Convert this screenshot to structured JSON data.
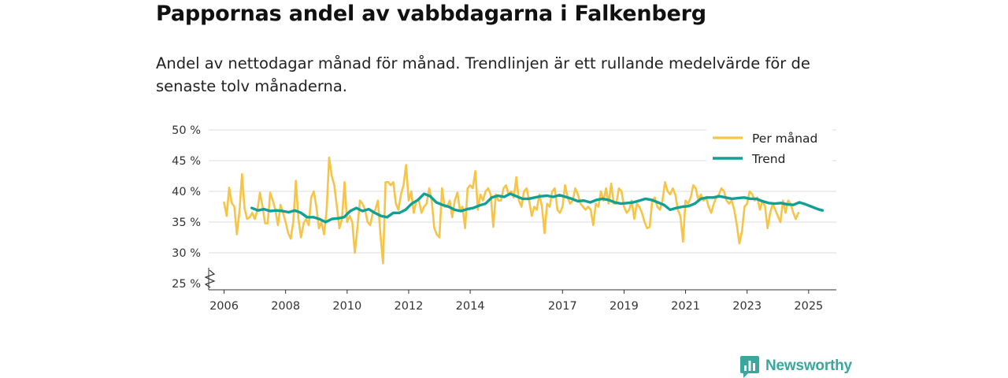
{
  "title": "Pappornas andel av vabbdagarna i Falkenberg",
  "subtitle": "Andel av nettodagar månad för månad. Trendlinjen är ett rullande medelvärde för de senaste tolv månaderna.",
  "brand": "Newsworthy",
  "colors": {
    "monthly": "#f6c447",
    "trend": "#12a095",
    "brand": "#3aa79c",
    "grid": "#dddddd",
    "axis": "#333333"
  },
  "chart_data": {
    "type": "line",
    "title": "Pappornas andel av vabbdagarna i Falkenberg",
    "xlabel": "",
    "ylabel": "",
    "xlim": [
      2005.5,
      2025.9
    ],
    "ylim": [
      25,
      50
    ],
    "y_ticks": [
      25,
      30,
      35,
      40,
      45,
      50
    ],
    "y_tick_labels": [
      "25 %",
      "30 %",
      "35 %",
      "40 %",
      "45 %",
      "50 %"
    ],
    "x_ticks": [
      2006,
      2008,
      2010,
      2012,
      2014,
      2017,
      2019,
      2021,
      2023,
      2025
    ],
    "x_tick_labels": [
      "2006",
      "2008",
      "2010",
      "2012",
      "2014",
      "2017",
      "2019",
      "2021",
      "2023",
      "2025"
    ],
    "y_axis_break": true,
    "legend": {
      "placement": "top-right",
      "entries": [
        "Per månad",
        "Trend"
      ]
    },
    "series": [
      {
        "name": "Per månad",
        "x_start": 2006.0,
        "x_step": 0.08333,
        "values": [
          38.2,
          36.0,
          40.6,
          38.1,
          37.5,
          33.0,
          36.8,
          42.8,
          37.2,
          35.5,
          35.8,
          36.5,
          35.5,
          37.0,
          39.8,
          37.5,
          34.8,
          34.8,
          39.8,
          38.5,
          37.0,
          34.5,
          37.8,
          36.5,
          35.0,
          33.2,
          32.3,
          35.0,
          41.7,
          35.5,
          32.5,
          34.8,
          35.5,
          34.5,
          39.0,
          40.0,
          37.5,
          34.0,
          35.0,
          33.0,
          37.0,
          45.5,
          42.5,
          41.0,
          37.5,
          34.0,
          35.5,
          41.5,
          35.0,
          36.0,
          35.0,
          30.0,
          34.0,
          38.5,
          38.0,
          37.0,
          35.0,
          34.5,
          36.5,
          37.0,
          38.5,
          33.0,
          28.3,
          41.5,
          41.5,
          41.0,
          41.5,
          38.0,
          37.0,
          39.5,
          41.0,
          44.3,
          38.5,
          40.0,
          36.5,
          38.5,
          38.5,
          36.5,
          37.5,
          38.0,
          40.5,
          38.5,
          34.0,
          33.0,
          32.5,
          40.5,
          37.5,
          37.5,
          38.5,
          35.8,
          38.5,
          39.8,
          37.0,
          37.5,
          34.0,
          40.5,
          41.0,
          40.5,
          43.3,
          37.0,
          39.5,
          38.5,
          40.0,
          40.5,
          39.5,
          34.2,
          39.5,
          38.5,
          38.5,
          40.5,
          41.0,
          39.5,
          40.0,
          39.0,
          42.3,
          38.5,
          37.5,
          40.0,
          40.5,
          38.5,
          36.0,
          37.5,
          37.0,
          39.5,
          37.5,
          33.2,
          38.0,
          37.5,
          40.0,
          40.5,
          37.0,
          36.5,
          37.5,
          41.0,
          39.0,
          38.0,
          38.5,
          40.5,
          39.5,
          38.0,
          37.5,
          37.0,
          37.5,
          37.0,
          34.5,
          38.0,
          37.5,
          40.0,
          38.5,
          40.5,
          38.0,
          41.3,
          38.0,
          38.0,
          40.5,
          40.0,
          37.5,
          36.5,
          37.0,
          38.5,
          35.5,
          38.0,
          37.5,
          36.5,
          35.0,
          34.0,
          34.2,
          38.5,
          39.0,
          37.5,
          37.0,
          38.5,
          41.5,
          40.0,
          39.5,
          40.5,
          39.5,
          37.0,
          36.0,
          31.8,
          38.5,
          38.0,
          39.0,
          41.0,
          40.5,
          38.5,
          39.5,
          38.5,
          39.0,
          37.5,
          36.5,
          38.0,
          39.0,
          39.5,
          40.5,
          40.0,
          38.5,
          38.0,
          38.5,
          37.0,
          34.5,
          31.5,
          33.5,
          37.5,
          38.0,
          40.0,
          39.5,
          38.5,
          39.0,
          37.0,
          38.5,
          37.5,
          34.0,
          36.5,
          38.0,
          37.0,
          36.0,
          35.0,
          38.5,
          36.5,
          38.5,
          38.0,
          36.5,
          35.5,
          36.5
        ]
      },
      {
        "name": "Trend",
        "x": [
          2006.9,
          2007.1,
          2007.3,
          2007.5,
          2007.7,
          2007.9,
          2008.1,
          2008.3,
          2008.5,
          2008.7,
          2008.9,
          2009.1,
          2009.3,
          2009.5,
          2009.7,
          2009.9,
          2010.1,
          2010.3,
          2010.5,
          2010.7,
          2010.9,
          2011.1,
          2011.3,
          2011.5,
          2011.7,
          2011.9,
          2012.1,
          2012.3,
          2012.5,
          2012.7,
          2012.9,
          2013.1,
          2013.3,
          2013.5,
          2013.7,
          2013.9,
          2014.1,
          2014.3,
          2014.5,
          2014.7,
          2014.9,
          2015.1,
          2015.3,
          2015.5,
          2015.7,
          2015.9,
          2016.1,
          2016.3,
          2016.5,
          2016.7,
          2016.9,
          2017.1,
          2017.3,
          2017.5,
          2017.7,
          2017.9,
          2018.1,
          2018.3,
          2018.5,
          2018.7,
          2018.9,
          2019.1,
          2019.3,
          2019.5,
          2019.7,
          2019.9,
          2020.1,
          2020.3,
          2020.5,
          2020.7,
          2020.9,
          2021.1,
          2021.3,
          2021.5,
          2021.7,
          2021.9,
          2022.1,
          2022.3,
          2022.5,
          2022.7,
          2022.9,
          2023.1,
          2023.3,
          2023.5,
          2023.7,
          2023.9,
          2024.1,
          2024.3,
          2024.5,
          2024.7,
          2024.9,
          2025.1,
          2025.3,
          2025.45
        ],
        "values": [
          37.3,
          36.9,
          37.1,
          36.8,
          36.9,
          36.8,
          36.6,
          36.9,
          36.5,
          35.8,
          35.8,
          35.5,
          35.0,
          35.5,
          35.6,
          35.8,
          36.8,
          37.3,
          36.8,
          37.1,
          36.5,
          36.0,
          35.8,
          36.5,
          36.5,
          37.0,
          38.0,
          38.6,
          39.6,
          39.2,
          38.2,
          37.8,
          37.5,
          37.0,
          36.8,
          37.1,
          37.3,
          37.7,
          38.0,
          39.0,
          39.3,
          39.1,
          39.6,
          39.2,
          38.8,
          38.8,
          39.0,
          39.2,
          39.3,
          39.1,
          39.4,
          39.1,
          38.8,
          38.4,
          38.5,
          38.2,
          38.6,
          38.8,
          38.6,
          38.2,
          38.0,
          38.1,
          38.2,
          38.5,
          38.8,
          38.6,
          38.2,
          37.8,
          37.0,
          37.3,
          37.5,
          37.6,
          38.0,
          38.8,
          39.0,
          39.0,
          39.2,
          39.0,
          38.8,
          38.9,
          39.0,
          38.8,
          38.8,
          38.4,
          38.1,
          38.0,
          38.1,
          37.9,
          37.8,
          38.2,
          37.9,
          37.5,
          37.1,
          36.9
        ]
      }
    ]
  }
}
